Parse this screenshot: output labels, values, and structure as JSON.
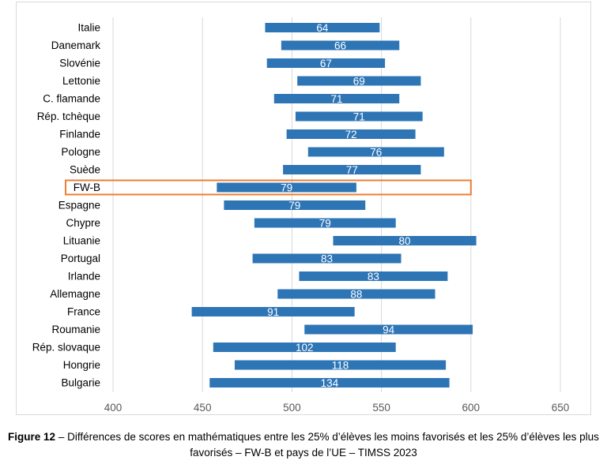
{
  "chart_data": {
    "type": "bar",
    "orientation": "horizontal",
    "subtype": "range",
    "categories": [
      "Italie",
      "Danemark",
      "Slovénie",
      "Lettonie",
      "C. flamande",
      "Rép. tchèque",
      "Finlande",
      "Pologne",
      "Suède",
      "FW-B",
      "Espagne",
      "Chypre",
      "Lituanie",
      "Portugal",
      "Irlande",
      "Allemagne",
      "France",
      "Roumanie",
      "Rép. slovaque",
      "Hongrie",
      "Bulgarie"
    ],
    "series": [
      {
        "low": [
          485,
          494,
          486,
          503,
          490,
          502,
          497,
          509,
          495,
          458,
          462,
          479,
          523,
          478,
          504,
          492,
          444,
          507,
          456,
          468,
          454
        ],
        "high": [
          549,
          560,
          552,
          572,
          560,
          573,
          569,
          585,
          572,
          536,
          541,
          558,
          603,
          561,
          587,
          580,
          535,
          601,
          558,
          586,
          588
        ],
        "labels": [
          "64",
          "66",
          "67",
          "69",
          "71",
          "71",
          "72",
          "76",
          "77",
          "79",
          "79",
          "79",
          "80",
          "83",
          "83",
          "88",
          "91",
          "94",
          "102",
          "118",
          "134"
        ],
        "color": "#2e75b6"
      }
    ],
    "xticks": [
      "400",
      "450",
      "500",
      "550",
      "600",
      "650"
    ],
    "xlim": [
      400,
      650
    ],
    "grid": "vertical",
    "highlight": {
      "category": "FW-B",
      "color": "#ed7d31"
    },
    "label_color": "#ffffff",
    "tick_color": "#595959"
  },
  "caption": {
    "label": "Figure 12",
    "text": " – Différences de scores en mathématiques entre les 25% d’élèves les moins favorisés et les 25% d’élèves les plus favorisés – FW-B et pays de l’UE – TIMSS 2023"
  }
}
